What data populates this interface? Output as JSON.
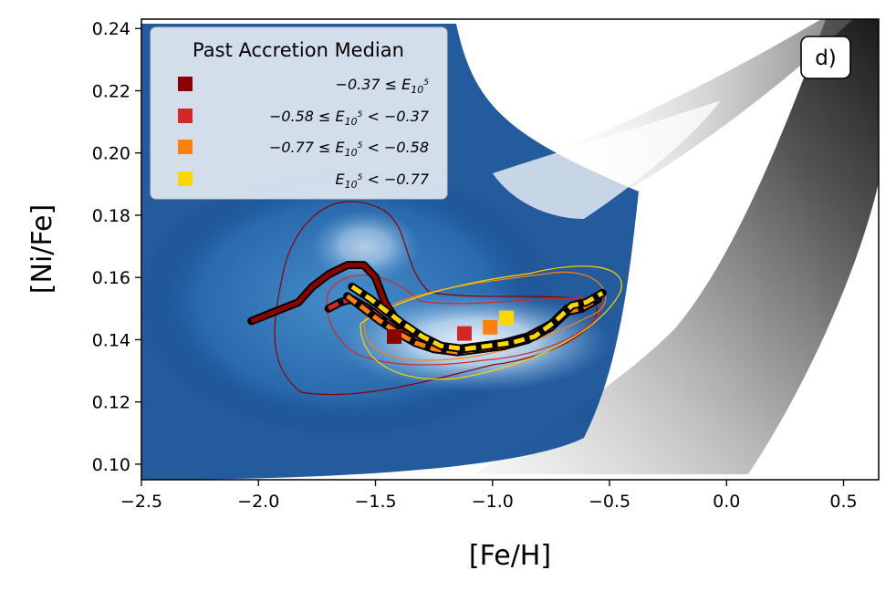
{
  "chart_data": {
    "type": "line",
    "panel_label": "d)",
    "xlabel": "[Fe/H]",
    "ylabel": "[Ni/Fe]",
    "xlim": [
      -2.5,
      0.65
    ],
    "ylim": [
      0.095,
      0.243
    ],
    "xticks": [
      {
        "value": -2.5,
        "label": "−2.5"
      },
      {
        "value": -2.0,
        "label": "−2.0"
      },
      {
        "value": -1.5,
        "label": "−1.5"
      },
      {
        "value": -1.0,
        "label": "−1.0"
      },
      {
        "value": -0.5,
        "label": "−0.5"
      },
      {
        "value": 0.0,
        "label": "0.0"
      },
      {
        "value": 0.5,
        "label": "0.5"
      }
    ],
    "yticks": [
      {
        "value": 0.1,
        "label": "0.10"
      },
      {
        "value": 0.12,
        "label": "0.12"
      },
      {
        "value": 0.14,
        "label": "0.14"
      },
      {
        "value": 0.16,
        "label": "0.16"
      },
      {
        "value": 0.18,
        "label": "0.18"
      },
      {
        "value": 0.2,
        "label": "0.20"
      },
      {
        "value": 0.22,
        "label": "0.22"
      },
      {
        "value": 0.24,
        "label": "0.24"
      }
    ],
    "legend": {
      "title": "Past Accretion Median",
      "location": "upper-left"
    },
    "series": [
      {
        "name": "−0.37 ≤ E₁₀⁵",
        "label_main": "−0.37 ≤ E",
        "label_sub": "10",
        "label_sup": "5",
        "label_tail": "",
        "color": "#8b0000",
        "x": [
          -2.03,
          -1.93,
          -1.83,
          -1.77,
          -1.7,
          -1.62,
          -1.55,
          -1.5,
          -1.46,
          -1.4,
          -1.33,
          -1.25,
          -1.15,
          -1.05,
          -0.95,
          -0.85,
          -0.75,
          -0.68,
          -0.62,
          -0.55
        ],
        "y": [
          0.146,
          0.149,
          0.152,
          0.157,
          0.161,
          0.164,
          0.164,
          0.16,
          0.152,
          0.145,
          0.14,
          0.137,
          0.137,
          0.138,
          0.139,
          0.141,
          0.145,
          0.15,
          0.151,
          0.154
        ],
        "median_marker": {
          "x": -1.42,
          "y": 0.141
        }
      },
      {
        "name": "−0.58 ≤ E₁₀⁵ < −0.37",
        "label_main": "−0.58 ≤ E",
        "label_sub": "10",
        "label_sup": "5",
        "label_tail": " < −0.37",
        "color": "#d62728",
        "x": [
          -1.7,
          -1.65,
          -1.6,
          -1.53,
          -1.46,
          -1.4,
          -1.33,
          -1.25,
          -1.15,
          -1.05,
          -0.95,
          -0.85,
          -0.75,
          -0.68,
          -0.62,
          -0.55
        ],
        "y": [
          0.15,
          0.152,
          0.153,
          0.15,
          0.146,
          0.143,
          0.14,
          0.137,
          0.136,
          0.137,
          0.138,
          0.14,
          0.144,
          0.149,
          0.15,
          0.153
        ],
        "median_marker": {
          "x": -1.12,
          "y": 0.142
        }
      },
      {
        "name": "−0.77 ≤ E₁₀⁵ < −0.58",
        "label_main": "−0.77 ≤ E",
        "label_sub": "10",
        "label_sup": "5",
        "label_tail": " < −0.58",
        "color": "#ff7f0e",
        "x": [
          -1.62,
          -1.55,
          -1.48,
          -1.4,
          -1.33,
          -1.25,
          -1.15,
          -1.05,
          -0.95,
          -0.85,
          -0.75,
          -0.68,
          -0.62,
          -0.55
        ],
        "y": [
          0.154,
          0.15,
          0.146,
          0.142,
          0.139,
          0.137,
          0.136,
          0.137,
          0.138,
          0.14,
          0.144,
          0.149,
          0.15,
          0.153
        ],
        "median_marker": {
          "x": -1.01,
          "y": 0.144
        }
      },
      {
        "name": "E₁₀⁵ < −0.77",
        "label_main": "E",
        "label_sub": "10",
        "label_sup": "5",
        "label_tail": " < −0.77",
        "color": "#ffd700",
        "x": [
          -1.6,
          -1.52,
          -1.45,
          -1.38,
          -1.3,
          -1.22,
          -1.12,
          -1.02,
          -0.92,
          -0.82,
          -0.73,
          -0.66,
          -0.6,
          -0.53
        ],
        "y": [
          0.157,
          0.153,
          0.149,
          0.145,
          0.141,
          0.138,
          0.137,
          0.138,
          0.139,
          0.141,
          0.146,
          0.151,
          0.152,
          0.155
        ],
        "median_marker": {
          "x": -0.94,
          "y": 0.147
        }
      }
    ]
  }
}
